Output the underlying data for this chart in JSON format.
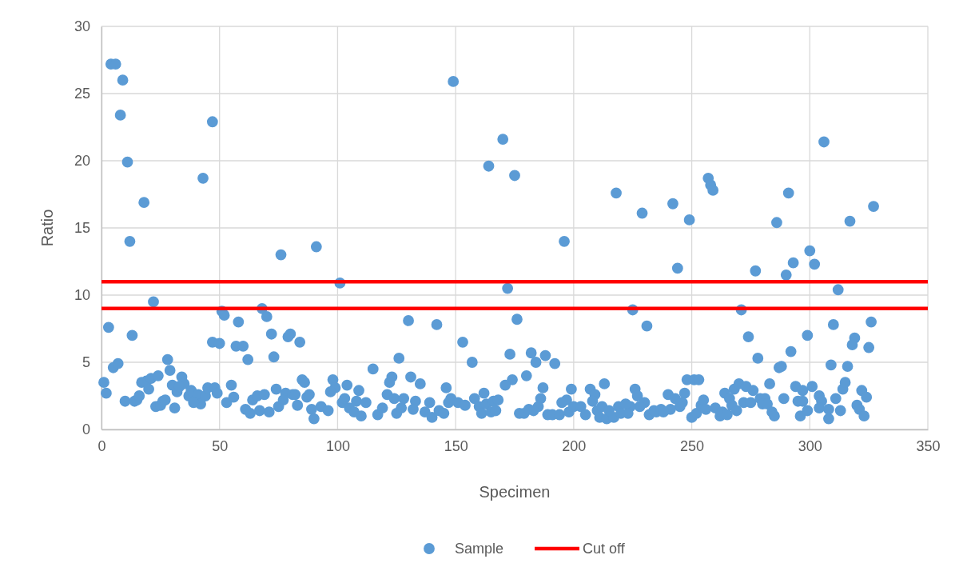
{
  "chart_data": {
    "type": "scatter",
    "xlabel": "Specimen",
    "ylabel": "Ratio",
    "xlim": [
      0,
      350
    ],
    "xticks": [
      0,
      50,
      100,
      150,
      200,
      250,
      300,
      350
    ],
    "ylim": [
      0,
      30
    ],
    "yticks": [
      0,
      5,
      10,
      15,
      20,
      25,
      30
    ],
    "grid": true,
    "legend": "bottom",
    "series": [
      {
        "name": "Sample",
        "marker": "circle",
        "color": "#5b9bd5",
        "x": [
          4,
          6,
          9,
          8,
          11,
          18,
          12,
          22,
          3,
          13,
          47,
          43,
          51,
          52,
          47,
          50,
          58,
          57,
          28,
          5,
          7,
          29,
          1,
          2,
          10,
          14,
          15,
          16,
          17,
          19,
          21,
          24,
          20,
          23,
          25,
          26,
          27,
          31,
          30,
          32,
          34,
          35,
          33,
          37,
          38,
          41,
          42,
          39,
          44,
          45,
          48,
          49,
          53,
          55,
          56,
          76,
          91,
          101,
          68,
          70,
          72,
          79,
          80,
          84,
          60,
          62,
          73,
          115,
          85,
          86,
          98,
          99,
          97,
          104,
          109,
          74,
          78,
          81,
          82,
          87,
          88,
          64,
          66,
          69,
          61,
          63,
          67,
          71,
          75,
          77,
          83,
          89,
          90,
          93,
          96,
          102,
          103,
          105,
          107,
          108,
          110,
          112,
          149,
          170,
          164,
          175,
          172,
          130,
          142,
          153,
          157,
          126,
          173,
          176,
          174,
          171,
          123,
          122,
          131,
          135,
          146,
          121,
          124,
          128,
          133,
          139,
          117,
          119,
          125,
          127,
          132,
          137,
          140,
          143,
          145,
          147,
          148,
          151,
          154,
          158,
          162,
          160,
          161,
          163,
          166,
          168,
          165,
          167,
          177,
          196,
          218,
          229,
          225,
          231,
          182,
          184,
          188,
          192,
          180,
          187,
          186,
          185,
          199,
          197,
          195,
          207,
          209,
          208,
          213,
          226,
          227,
          230,
          228,
          224,
          179,
          181,
          183,
          189,
          191,
          194,
          198,
          200,
          203,
          205,
          210,
          211,
          214,
          217,
          212,
          215,
          219,
          222,
          220,
          223,
          232,
          234,
          257,
          258,
          259,
          242,
          249,
          291,
          286,
          244,
          277,
          290,
          293,
          271,
          274,
          278,
          292,
          287,
          288,
          248,
          251,
          253,
          247,
          246,
          245,
          240,
          243,
          241,
          235,
          237,
          238,
          250,
          252,
          254,
          255,
          256,
          260,
          262,
          263,
          265,
          264,
          266,
          267,
          269,
          268,
          270,
          273,
          276,
          272,
          275,
          283,
          279,
          281,
          280,
          282,
          284,
          285,
          289,
          294,
          295,
          296,
          306,
          327,
          317,
          300,
          302,
          312,
          326,
          310,
          299,
          319,
          318,
          325,
          309,
          316,
          297,
          301,
          297,
          299,
          304,
          305,
          304,
          308,
          308,
          311,
          313,
          314,
          315,
          322,
          324,
          320,
          321,
          323
        ],
        "values": [
          27.2,
          27.2,
          26.0,
          23.4,
          19.9,
          16.9,
          14.0,
          9.5,
          7.6,
          7.0,
          22.9,
          18.7,
          8.8,
          8.5,
          6.5,
          6.4,
          8.0,
          6.2,
          5.2,
          4.6,
          4.9,
          4.4,
          3.5,
          2.7,
          2.1,
          2.1,
          2.2,
          2.5,
          3.5,
          3.6,
          3.8,
          4.0,
          3.0,
          1.7,
          1.8,
          2.1,
          2.2,
          1.6,
          3.3,
          2.8,
          3.9,
          3.4,
          3.2,
          2.5,
          2.9,
          2.6,
          1.9,
          2.0,
          2.5,
          3.1,
          3.1,
          2.7,
          2.0,
          3.3,
          2.4,
          13.0,
          13.6,
          10.9,
          9.0,
          8.4,
          7.1,
          6.9,
          7.1,
          6.5,
          6.2,
          5.2,
          5.4,
          4.5,
          3.7,
          3.5,
          3.7,
          3.1,
          2.8,
          3.3,
          2.9,
          3.0,
          2.7,
          2.6,
          2.6,
          2.4,
          2.6,
          2.2,
          2.5,
          2.6,
          1.5,
          1.2,
          1.4,
          1.3,
          1.7,
          2.2,
          1.8,
          1.5,
          0.8,
          1.7,
          1.4,
          2.0,
          2.3,
          1.6,
          1.3,
          2.1,
          1.0,
          2.0,
          25.9,
          21.6,
          19.6,
          18.9,
          10.5,
          8.1,
          7.8,
          6.5,
          5.0,
          5.3,
          5.6,
          8.2,
          3.7,
          3.3,
          3.9,
          3.5,
          3.9,
          3.4,
          3.1,
          2.6,
          2.3,
          2.3,
          2.1,
          2.0,
          1.1,
          1.6,
          1.2,
          1.6,
          1.5,
          1.3,
          0.9,
          1.4,
          1.2,
          2.0,
          2.3,
          2.0,
          1.8,
          2.3,
          2.7,
          1.7,
          1.2,
          1.9,
          2.1,
          2.2,
          1.3,
          1.4,
          1.2,
          14.0,
          17.6,
          16.1,
          8.9,
          7.7,
          5.7,
          5.0,
          5.5,
          4.9,
          4.0,
          3.1,
          2.3,
          1.7,
          3.0,
          2.2,
          2.0,
          3.0,
          2.6,
          2.1,
          3.4,
          3.0,
          2.5,
          2.0,
          1.7,
          1.7,
          1.2,
          1.5,
          1.4,
          1.1,
          1.1,
          1.1,
          1.3,
          1.7,
          1.7,
          1.1,
          1.4,
          0.9,
          0.8,
          0.9,
          1.7,
          1.4,
          1.7,
          1.9,
          1.2,
          1.2,
          1.1,
          1.4,
          18.7,
          18.2,
          17.8,
          16.8,
          15.6,
          17.6,
          15.4,
          12.0,
          11.8,
          11.5,
          12.4,
          8.9,
          6.9,
          5.3,
          5.8,
          4.6,
          4.7,
          3.7,
          3.7,
          3.7,
          2.7,
          2.0,
          1.7,
          2.6,
          2.3,
          1.5,
          1.3,
          1.5,
          1.3,
          0.9,
          1.2,
          1.8,
          2.2,
          1.5,
          1.6,
          1.0,
          1.3,
          1.1,
          2.7,
          2.3,
          1.8,
          1.4,
          3.0,
          3.4,
          3.2,
          2.9,
          2.0,
          2.0,
          3.4,
          2.3,
          2.3,
          1.9,
          1.9,
          1.3,
          1.0,
          2.3,
          3.2,
          2.1,
          1.0,
          21.4,
          16.6,
          15.5,
          13.3,
          12.3,
          10.4,
          8.0,
          7.8,
          7.0,
          6.8,
          6.3,
          6.1,
          4.8,
          4.7,
          2.9,
          3.2,
          2.1,
          1.4,
          2.5,
          2.1,
          1.6,
          1.5,
          0.8,
          2.3,
          1.4,
          3.0,
          3.5,
          2.9,
          2.4,
          1.8,
          1.5,
          1.0
        ]
      },
      {
        "type": "line",
        "color": "#ff0000",
        "x": [
          0,
          350
        ],
        "values": [
          11,
          11
        ]
      },
      {
        "name": "Cut off",
        "type": "line",
        "color": "#ff0000",
        "x": [
          0,
          350
        ],
        "values": [
          9,
          9
        ]
      }
    ]
  }
}
